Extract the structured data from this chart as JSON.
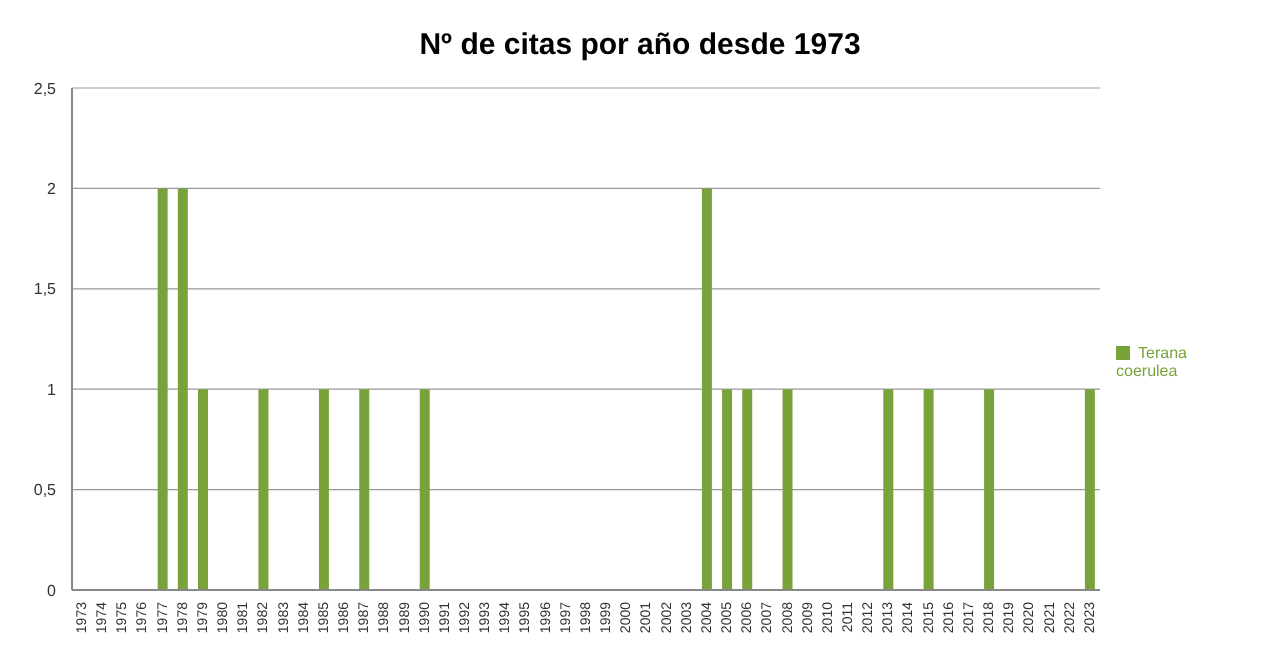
{
  "chart_data": {
    "type": "bar",
    "title": "Nº de citas por año desde 1973",
    "categories": [
      "1973",
      "1974",
      "1975",
      "1976",
      "1977",
      "1978",
      "1979",
      "1980",
      "1981",
      "1982",
      "1983",
      "1984",
      "1985",
      "1986",
      "1987",
      "1988",
      "1989",
      "1990",
      "1991",
      "1992",
      "1993",
      "1994",
      "1995",
      "1996",
      "1997",
      "1998",
      "1999",
      "2000",
      "2001",
      "2002",
      "2003",
      "2004",
      "2005",
      "2006",
      "2007",
      "2008",
      "2009",
      "2010",
      "2011",
      "2012",
      "2013",
      "2014",
      "2015",
      "2016",
      "2017",
      "2018",
      "2019",
      "2020",
      "2021",
      "2022",
      "2023"
    ],
    "series": [
      {
        "name": "Terana coerulea",
        "color": "#77a33a",
        "values": [
          0,
          0,
          0,
          0,
          2,
          2,
          1,
          0,
          0,
          1,
          0,
          0,
          1,
          0,
          1,
          0,
          0,
          1,
          0,
          0,
          0,
          0,
          0,
          0,
          0,
          0,
          0,
          0,
          0,
          0,
          0,
          2,
          1,
          1,
          0,
          1,
          0,
          0,
          0,
          0,
          1,
          0,
          1,
          0,
          0,
          1,
          0,
          0,
          0,
          0,
          1
        ]
      }
    ],
    "ylim": [
      0,
      2.5
    ],
    "yticks": [
      0,
      {
        "value": 0.5,
        "label": "0,5"
      },
      1,
      {
        "value": 1.5,
        "label": "1,5"
      },
      2,
      {
        "value": 2.5,
        "label": "2,5"
      }
    ],
    "grid": "y",
    "legend": "right"
  }
}
